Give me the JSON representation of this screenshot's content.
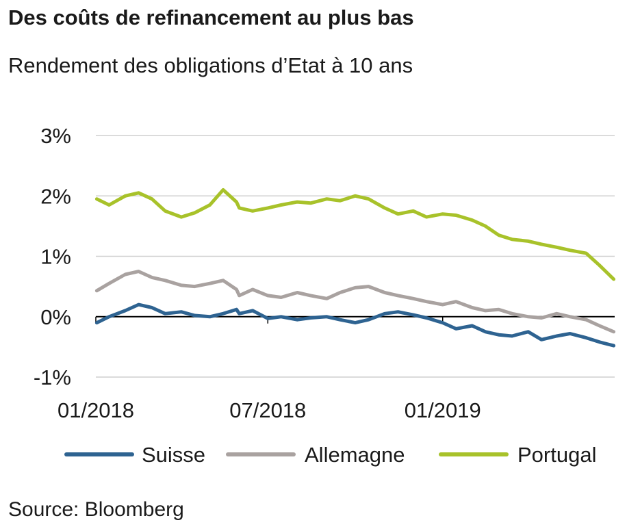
{
  "title": "Des coûts de refinancement au plus bas",
  "subtitle": "Rendement des obligations d’Etat à 10 ans",
  "source": "Source: Bloomberg",
  "chart_data": {
    "type": "line",
    "title": "Des coûts de refinancement au plus bas",
    "subtitle": "Rendement des obligations d’Etat à 10 ans",
    "xlabel": "",
    "ylabel": "",
    "ylim": [
      -1,
      3
    ],
    "xlim": [
      "2018-01",
      "2019-07"
    ],
    "y_ticks": [
      {
        "value": 3,
        "label": "3%"
      },
      {
        "value": 2,
        "label": "2%"
      },
      {
        "value": 1,
        "label": "1%"
      },
      {
        "value": 0,
        "label": "0%"
      },
      {
        "value": -1,
        "label": "-1%"
      }
    ],
    "x_ticks": [
      {
        "value": "2018-01",
        "label": "01/2018"
      },
      {
        "value": "2018-07",
        "label": "07/2018"
      },
      {
        "value": "2019-01",
        "label": "01/2019"
      }
    ],
    "grid": true,
    "legend": "bottom",
    "x": [
      "2018-01-02",
      "2018-01-15",
      "2018-02-01",
      "2018-02-15",
      "2018-03-01",
      "2018-03-15",
      "2018-04-01",
      "2018-04-15",
      "2018-05-01",
      "2018-05-15",
      "2018-05-29",
      "2018-06-01",
      "2018-06-15",
      "2018-07-01",
      "2018-07-15",
      "2018-08-01",
      "2018-08-15",
      "2018-09-01",
      "2018-09-15",
      "2018-10-01",
      "2018-10-15",
      "2018-11-01",
      "2018-11-15",
      "2018-12-01",
      "2018-12-15",
      "2019-01-01",
      "2019-01-15",
      "2019-02-01",
      "2019-02-15",
      "2019-03-01",
      "2019-03-15",
      "2019-04-01",
      "2019-04-15",
      "2019-05-01",
      "2019-05-15",
      "2019-06-01",
      "2019-06-15",
      "2019-06-30"
    ],
    "series": [
      {
        "name": "Suisse",
        "color": "#2e6391",
        "values": [
          -0.1,
          0.0,
          0.1,
          0.2,
          0.15,
          0.05,
          0.08,
          0.02,
          0.0,
          0.05,
          0.12,
          0.05,
          0.1,
          -0.03,
          0.0,
          -0.05,
          -0.02,
          0.0,
          -0.05,
          -0.1,
          -0.05,
          0.05,
          0.08,
          0.03,
          -0.02,
          -0.1,
          -0.2,
          -0.15,
          -0.25,
          -0.3,
          -0.32,
          -0.25,
          -0.38,
          -0.32,
          -0.28,
          -0.35,
          -0.42,
          -0.48
        ]
      },
      {
        "name": "Allemagne",
        "color": "#a9a2a0",
        "values": [
          0.43,
          0.55,
          0.7,
          0.75,
          0.65,
          0.6,
          0.52,
          0.5,
          0.55,
          0.6,
          0.45,
          0.35,
          0.45,
          0.35,
          0.32,
          0.4,
          0.35,
          0.3,
          0.4,
          0.48,
          0.5,
          0.4,
          0.35,
          0.3,
          0.25,
          0.2,
          0.25,
          0.15,
          0.1,
          0.12,
          0.05,
          0.0,
          -0.02,
          0.05,
          0.0,
          -0.05,
          -0.15,
          -0.25
        ]
      },
      {
        "name": "Portugal",
        "color": "#a8c22a",
        "values": [
          1.95,
          1.85,
          2.0,
          2.05,
          1.95,
          1.75,
          1.65,
          1.72,
          1.85,
          2.1,
          1.9,
          1.8,
          1.75,
          1.8,
          1.85,
          1.9,
          1.88,
          1.95,
          1.92,
          2.0,
          1.95,
          1.8,
          1.7,
          1.75,
          1.65,
          1.7,
          1.68,
          1.6,
          1.5,
          1.35,
          1.28,
          1.25,
          1.2,
          1.15,
          1.1,
          1.05,
          0.85,
          0.62
        ]
      }
    ]
  }
}
